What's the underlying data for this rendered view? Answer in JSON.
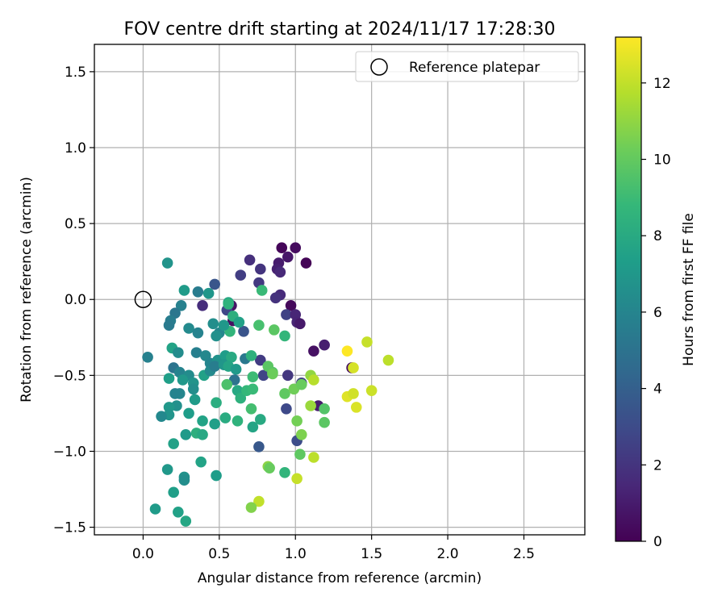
{
  "chart_data": {
    "type": "scatter",
    "title": "FOV centre drift starting at 2024/11/17 17:28:30",
    "xlabel": "Angular distance from reference (arcmin)",
    "ylabel": "Rotation from reference (arcmin)",
    "xlim": [
      -0.32,
      2.9
    ],
    "ylim": [
      -1.55,
      1.68
    ],
    "xticks": [
      0.0,
      0.5,
      1.0,
      1.5,
      2.0,
      2.5
    ],
    "xtick_labels": [
      "0.0",
      "0.5",
      "1.0",
      "1.5",
      "2.0",
      "2.5"
    ],
    "yticks": [
      -1.5,
      -1.0,
      -0.5,
      0.0,
      0.5,
      1.0,
      1.5
    ],
    "ytick_labels": [
      "−1.5",
      "−1.0",
      "−0.5",
      "0.0",
      "0.5",
      "1.0",
      "1.5"
    ],
    "grid": true,
    "legend": {
      "position": "top-right",
      "label": "Reference platepar"
    },
    "reference_point": {
      "x": 0.0,
      "y": 0.0
    },
    "colorbar": {
      "label": "Hours from first FF file",
      "colormap": "viridis",
      "range": [
        0,
        13.2
      ],
      "ticks": [
        0,
        2,
        4,
        6,
        8,
        10,
        12
      ],
      "tick_labels": [
        "0",
        "2",
        "4",
        "6",
        "8",
        "10",
        "12"
      ]
    },
    "points": [
      {
        "x": 0.91,
        "y": 0.34,
        "h": 0.2
      },
      {
        "x": 1.0,
        "y": 0.34,
        "h": 0.4
      },
      {
        "x": 1.07,
        "y": 0.24,
        "h": 0.1
      },
      {
        "x": 0.95,
        "y": 0.28,
        "h": 0.8
      },
      {
        "x": 0.89,
        "y": 0.24,
        "h": 1.0
      },
      {
        "x": 0.88,
        "y": 0.2,
        "h": 1.2
      },
      {
        "x": 0.9,
        "y": 0.18,
        "h": 1.5
      },
      {
        "x": 0.7,
        "y": 0.26,
        "h": 1.8
      },
      {
        "x": 0.77,
        "y": 0.2,
        "h": 2.0
      },
      {
        "x": 0.64,
        "y": 0.16,
        "h": 2.4
      },
      {
        "x": 0.76,
        "y": 0.11,
        "h": 2.2
      },
      {
        "x": 0.9,
        "y": 0.03,
        "h": 1.6
      },
      {
        "x": 0.87,
        "y": 0.01,
        "h": 1.9
      },
      {
        "x": 0.97,
        "y": -0.04,
        "h": 0.3
      },
      {
        "x": 0.94,
        "y": -0.1,
        "h": 2.6
      },
      {
        "x": 1.0,
        "y": -0.1,
        "h": 1.4
      },
      {
        "x": 1.01,
        "y": -0.15,
        "h": 1.3
      },
      {
        "x": 1.03,
        "y": -0.16,
        "h": 0.9
      },
      {
        "x": 1.19,
        "y": -0.3,
        "h": 1.1
      },
      {
        "x": 1.12,
        "y": -0.34,
        "h": 0.6
      },
      {
        "x": 0.59,
        "y": -0.14,
        "h": 0.5
      },
      {
        "x": 0.58,
        "y": -0.04,
        "h": 0.7
      },
      {
        "x": 0.55,
        "y": -0.07,
        "h": 2.8
      },
      {
        "x": 0.66,
        "y": -0.21,
        "h": 3.4
      },
      {
        "x": 0.47,
        "y": 0.1,
        "h": 3.5
      },
      {
        "x": 0.39,
        "y": -0.04,
        "h": 1.7
      },
      {
        "x": 0.77,
        "y": -0.4,
        "h": 2.3
      },
      {
        "x": 0.79,
        "y": -0.5,
        "h": 2.7
      },
      {
        "x": 0.95,
        "y": -0.5,
        "h": 2.1
      },
      {
        "x": 0.94,
        "y": -0.72,
        "h": 2.9
      },
      {
        "x": 1.01,
        "y": -0.93,
        "h": 3.1
      },
      {
        "x": 0.76,
        "y": -0.97,
        "h": 3.6
      },
      {
        "x": 1.37,
        "y": -0.45,
        "h": 0.4
      },
      {
        "x": 1.15,
        "y": -0.7,
        "h": 1.0
      },
      {
        "x": 1.04,
        "y": -0.55,
        "h": 2.5
      },
      {
        "x": 0.16,
        "y": 0.24,
        "h": 6.8
      },
      {
        "x": 0.27,
        "y": 0.06,
        "h": 7.2
      },
      {
        "x": 0.36,
        "y": 0.05,
        "h": 5.5
      },
      {
        "x": 0.43,
        "y": 0.04,
        "h": 6.9
      },
      {
        "x": 0.25,
        "y": -0.04,
        "h": 5.8
      },
      {
        "x": 0.21,
        "y": -0.09,
        "h": 5.2
      },
      {
        "x": 0.18,
        "y": -0.14,
        "h": 5.6
      },
      {
        "x": 0.17,
        "y": -0.17,
        "h": 5.4
      },
      {
        "x": 0.3,
        "y": -0.19,
        "h": 6.3
      },
      {
        "x": 0.36,
        "y": -0.22,
        "h": 5.9
      },
      {
        "x": 0.46,
        "y": -0.16,
        "h": 6.5
      },
      {
        "x": 0.5,
        "y": -0.22,
        "h": 6.1
      },
      {
        "x": 0.56,
        "y": -0.02,
        "h": 7.8
      },
      {
        "x": 0.59,
        "y": -0.11,
        "h": 8.3
      },
      {
        "x": 0.63,
        "y": -0.15,
        "h": 7.5
      },
      {
        "x": 0.57,
        "y": -0.21,
        "h": 8.6
      },
      {
        "x": 0.48,
        "y": -0.24,
        "h": 6.6
      },
      {
        "x": 0.53,
        "y": -0.17,
        "h": 7.0
      },
      {
        "x": 0.78,
        "y": 0.06,
        "h": 8.9
      },
      {
        "x": 0.76,
        "y": -0.17,
        "h": 9.3
      },
      {
        "x": 0.86,
        "y": -0.2,
        "h": 9.8
      },
      {
        "x": 0.93,
        "y": -0.24,
        "h": 8.7
      },
      {
        "x": 0.19,
        "y": -0.32,
        "h": 7.6
      },
      {
        "x": 0.23,
        "y": -0.35,
        "h": 6.4
      },
      {
        "x": 0.35,
        "y": -0.35,
        "h": 5.7
      },
      {
        "x": 0.41,
        "y": -0.37,
        "h": 6.2
      },
      {
        "x": 0.44,
        "y": -0.42,
        "h": 6.0
      },
      {
        "x": 0.49,
        "y": -0.4,
        "h": 6.7
      },
      {
        "x": 0.54,
        "y": -0.37,
        "h": 7.3
      },
      {
        "x": 0.58,
        "y": -0.38,
        "h": 8.0
      },
      {
        "x": 0.67,
        "y": -0.39,
        "h": 5.3
      },
      {
        "x": 0.71,
        "y": -0.37,
        "h": 8.4
      },
      {
        "x": 0.2,
        "y": -0.45,
        "h": 5.1
      },
      {
        "x": 0.24,
        "y": -0.48,
        "h": 5.9
      },
      {
        "x": 0.3,
        "y": -0.5,
        "h": 6.4
      },
      {
        "x": 0.17,
        "y": -0.52,
        "h": 7.4
      },
      {
        "x": 0.26,
        "y": -0.53,
        "h": 7.0
      },
      {
        "x": 0.33,
        "y": -0.55,
        "h": 6.8
      },
      {
        "x": 0.4,
        "y": -0.5,
        "h": 7.5
      },
      {
        "x": 0.44,
        "y": -0.47,
        "h": 6.3
      },
      {
        "x": 0.47,
        "y": -0.44,
        "h": 5.6
      },
      {
        "x": 0.53,
        "y": -0.43,
        "h": 6.9
      },
      {
        "x": 0.56,
        "y": -0.44,
        "h": 7.7
      },
      {
        "x": 0.61,
        "y": -0.46,
        "h": 7.1
      },
      {
        "x": 0.6,
        "y": -0.53,
        "h": 5.0
      },
      {
        "x": 0.55,
        "y": -0.56,
        "h": 9.4
      },
      {
        "x": 0.72,
        "y": -0.51,
        "h": 9.0
      },
      {
        "x": 0.33,
        "y": -0.59,
        "h": 6.5
      },
      {
        "x": 0.24,
        "y": -0.62,
        "h": 6.1
      },
      {
        "x": 0.21,
        "y": -0.62,
        "h": 5.9
      },
      {
        "x": 0.34,
        "y": -0.66,
        "h": 7.2
      },
      {
        "x": 0.22,
        "y": -0.7,
        "h": 6.6
      },
      {
        "x": 0.17,
        "y": -0.71,
        "h": 7.0
      },
      {
        "x": 0.17,
        "y": -0.76,
        "h": 6.8
      },
      {
        "x": 0.12,
        "y": -0.77,
        "h": 6.2
      },
      {
        "x": 0.3,
        "y": -0.75,
        "h": 7.3
      },
      {
        "x": 0.39,
        "y": -0.8,
        "h": 7.6
      },
      {
        "x": 0.48,
        "y": -0.68,
        "h": 8.2
      },
      {
        "x": 0.47,
        "y": -0.82,
        "h": 7.4
      },
      {
        "x": 0.54,
        "y": -0.78,
        "h": 8.1
      },
      {
        "x": 0.62,
        "y": -0.6,
        "h": 7.9
      },
      {
        "x": 0.64,
        "y": -0.65,
        "h": 8.4
      },
      {
        "x": 0.68,
        "y": -0.6,
        "h": 8.8
      },
      {
        "x": 0.62,
        "y": -0.8,
        "h": 8.5
      },
      {
        "x": 0.72,
        "y": -0.84,
        "h": 7.7
      },
      {
        "x": 0.77,
        "y": -0.79,
        "h": 8.0
      },
      {
        "x": 0.28,
        "y": -0.89,
        "h": 7.1
      },
      {
        "x": 0.35,
        "y": -0.88,
        "h": 8.3
      },
      {
        "x": 0.39,
        "y": -0.89,
        "h": 7.9
      },
      {
        "x": 0.2,
        "y": -0.95,
        "h": 7.5
      },
      {
        "x": 0.38,
        "y": -1.07,
        "h": 7.6
      },
      {
        "x": 0.16,
        "y": -1.12,
        "h": 7.0
      },
      {
        "x": 0.27,
        "y": -1.17,
        "h": 6.7
      },
      {
        "x": 0.27,
        "y": -1.19,
        "h": 6.5
      },
      {
        "x": 0.48,
        "y": -1.16,
        "h": 7.3
      },
      {
        "x": 0.2,
        "y": -1.27,
        "h": 7.4
      },
      {
        "x": 0.08,
        "y": -1.38,
        "h": 7.2
      },
      {
        "x": 0.23,
        "y": -1.4,
        "h": 7.5
      },
      {
        "x": 0.28,
        "y": -1.46,
        "h": 7.8
      },
      {
        "x": 0.03,
        "y": -0.38,
        "h": 5.8
      },
      {
        "x": 0.93,
        "y": -1.14,
        "h": 8.6
      },
      {
        "x": 0.71,
        "y": -0.72,
        "h": 9.2
      },
      {
        "x": 0.72,
        "y": -0.59,
        "h": 8.9
      },
      {
        "x": 0.85,
        "y": -0.48,
        "h": 9.6
      },
      {
        "x": 0.56,
        "y": -0.03,
        "h": 8.5
      },
      {
        "x": 0.82,
        "y": -0.44,
        "h": 9.8
      },
      {
        "x": 0.85,
        "y": -0.49,
        "h": 10.2
      },
      {
        "x": 0.93,
        "y": -0.62,
        "h": 9.9
      },
      {
        "x": 0.99,
        "y": -0.59,
        "h": 10.3
      },
      {
        "x": 1.04,
        "y": -0.56,
        "h": 10.1
      },
      {
        "x": 1.1,
        "y": -0.5,
        "h": 11.0
      },
      {
        "x": 1.12,
        "y": -0.53,
        "h": 11.8
      },
      {
        "x": 1.1,
        "y": -0.7,
        "h": 11.2
      },
      {
        "x": 1.19,
        "y": -0.72,
        "h": 9.6
      },
      {
        "x": 1.19,
        "y": -0.81,
        "h": 9.8
      },
      {
        "x": 1.01,
        "y": -0.8,
        "h": 10.4
      },
      {
        "x": 1.04,
        "y": -0.89,
        "h": 10.6
      },
      {
        "x": 1.03,
        "y": -1.02,
        "h": 9.9
      },
      {
        "x": 1.12,
        "y": -1.04,
        "h": 11.9
      },
      {
        "x": 0.82,
        "y": -1.1,
        "h": 10.9
      },
      {
        "x": 0.83,
        "y": -1.11,
        "h": 10.1
      },
      {
        "x": 1.01,
        "y": -1.18,
        "h": 12.1
      },
      {
        "x": 0.76,
        "y": -1.33,
        "h": 12.0
      },
      {
        "x": 0.71,
        "y": -1.37,
        "h": 10.7
      },
      {
        "x": 1.34,
        "y": -0.34,
        "h": 13.2
      },
      {
        "x": 1.38,
        "y": -0.45,
        "h": 12.4
      },
      {
        "x": 1.47,
        "y": -0.28,
        "h": 12.1
      },
      {
        "x": 1.61,
        "y": -0.4,
        "h": 11.9
      },
      {
        "x": 1.34,
        "y": -0.64,
        "h": 12.6
      },
      {
        "x": 1.38,
        "y": -0.62,
        "h": 12.3
      },
      {
        "x": 1.5,
        "y": -0.6,
        "h": 12.2
      },
      {
        "x": 1.4,
        "y": -0.71,
        "h": 12.5
      }
    ]
  }
}
